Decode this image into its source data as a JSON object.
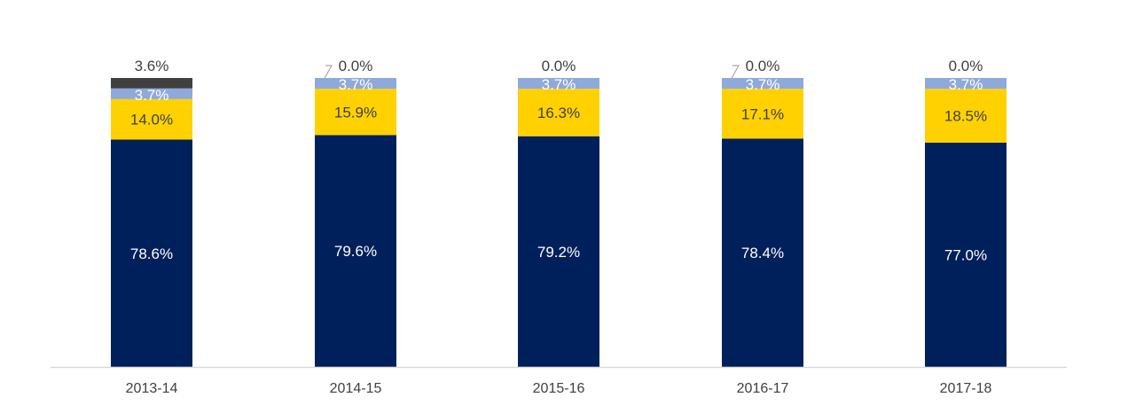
{
  "chart_data": {
    "type": "bar",
    "stacked": true,
    "categories": [
      "2013-14",
      "2014-15",
      "2015-16",
      "2016-17",
      "2017-18"
    ],
    "series": [
      {
        "values": [
          78.6,
          79.6,
          79.2,
          78.4,
          77.0
        ],
        "color": "#00205B",
        "label_color": "#ffffff"
      },
      {
        "values": [
          14.0,
          15.9,
          16.3,
          17.1,
          18.5
        ],
        "color": "#FFD100",
        "label_color": "#404040"
      },
      {
        "values": [
          3.7,
          3.7,
          3.7,
          3.7,
          3.7
        ],
        "color": "#8EA9DB",
        "label_color": "#ffffff"
      },
      {
        "values": [
          3.6,
          0.0,
          0.0,
          0.0,
          0.0
        ],
        "color": "#404040",
        "label_color": "#404040"
      }
    ],
    "data_labels": [
      [
        "78.6%",
        "79.6%",
        "79.2%",
        "78.4%",
        "77.0%"
      ],
      [
        "14.0%",
        "15.9%",
        "16.3%",
        "17.1%",
        "18.5%"
      ],
      [
        "3.7%",
        "3.7%",
        "3.7%",
        "3.7%",
        "3.7%"
      ],
      [
        "3.6%",
        "0.0%",
        "0.0%",
        "0.0%",
        "0.0%"
      ]
    ],
    "leader_lines": [
      false,
      true,
      false,
      true,
      false
    ],
    "ylim": [
      0,
      100
    ],
    "grid": false,
    "legend": "none",
    "axis_color": "#D9D9D9",
    "tick_label_color": "#404040"
  }
}
